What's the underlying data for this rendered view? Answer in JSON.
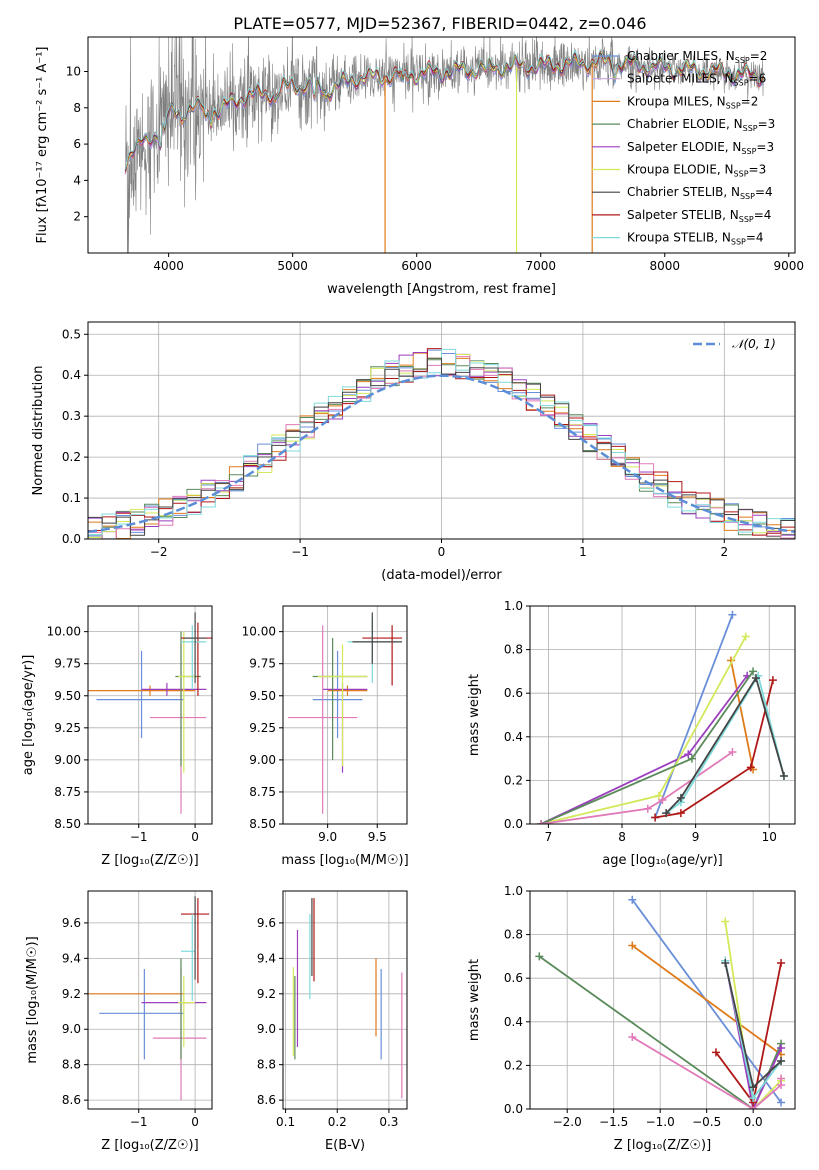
{
  "title": "PLATE=0577, MJD=52367, FIBERID=0442, z=0.046",
  "colors": {
    "Chabrier MILES": "#6a8fd8",
    "Salpeter MILES": "#c9a0d8",
    "Kroupa MILES": "#e07b1a",
    "Chabrier ELODIE": "#5a8a5a",
    "Salpeter ELODIE": "#9b3fbf",
    "Kroupa ELODIE": "#d4e85a",
    "Chabrier STELIB": "#444444",
    "Salpeter STELIB": "#b01818",
    "Kroupa STELIB": "#7fdada",
    "pink": "#e07ab8",
    "data": "#808080",
    "normal": "#5b8ed6"
  },
  "chart_data": [
    {
      "type": "line",
      "title": "PLATE=0577, MJD=52367, FIBERID=0442, z=0.046",
      "xlabel": "wavelength [Angstrom, rest frame]",
      "ylabel": "Flux [fλ10⁻¹⁷ erg cm⁻² s⁻¹ A⁻¹]",
      "xlim": [
        3350,
        9050
      ],
      "ylim": [
        0,
        11.9
      ],
      "xticks": [
        "4000",
        "5000",
        "6000",
        "7000",
        "8000",
        "9000"
      ],
      "yticks": [
        "2",
        "4",
        "6",
        "8",
        "10"
      ],
      "legend_position": "right",
      "legend": [
        "Chabrier MILES, N_SSP=2",
        "Salpeter MILES, N_SSP=6",
        "Kroupa MILES, N_SSP=2",
        "Chabrier ELODIE, N_SSP=3",
        "Salpeter ELODIE, N_SSP=3",
        "Kroupa ELODIE, N_SSP=3",
        "Chabrier STELIB, N_SSP=4",
        "Salpeter STELIB, N_SSP=4",
        "Kroupa STELIB, N_SSP=4"
      ],
      "continuum": [
        [
          3650,
          5.0
        ],
        [
          3700,
          5.6
        ],
        [
          3800,
          6.0
        ],
        [
          3900,
          6.6
        ],
        [
          4000,
          7.6
        ],
        [
          4200,
          8.0
        ],
        [
          4400,
          7.8
        ],
        [
          4600,
          8.6
        ],
        [
          4861,
          8.8
        ],
        [
          5000,
          9.3
        ],
        [
          5300,
          9.0
        ],
        [
          5500,
          9.6
        ],
        [
          5900,
          9.8
        ],
        [
          6300,
          10.0
        ],
        [
          6563,
          10.2
        ],
        [
          7000,
          10.3
        ],
        [
          7500,
          10.5
        ],
        [
          8000,
          10.2
        ],
        [
          8500,
          9.9
        ],
        [
          8800,
          9.7
        ]
      ]
    },
    {
      "type": "histogram",
      "xlabel": "(data-model)/error",
      "ylabel": "Normed distribution",
      "xlim": [
        -2.5,
        2.5
      ],
      "ylim": [
        0,
        0.53
      ],
      "xticks": [
        "−2",
        "−1",
        "0",
        "1",
        "2"
      ],
      "yticks": [
        "0.0",
        "0.1",
        "0.2",
        "0.3",
        "0.4",
        "0.5"
      ],
      "grid": true,
      "legend": [
        "𝒩(0, 1)"
      ],
      "legend_position": "top-right",
      "bin_width": 0.1,
      "gaussian": {
        "mean": 0,
        "sigma": 1
      }
    },
    {
      "type": "scatter",
      "xlabel": "Z [log₁₀(Z/Z☉)]",
      "ylabel": "age  [log₁₀(age/yr)]",
      "xlim": [
        -1.9,
        0.3
      ],
      "ylim": [
        8.5,
        10.2
      ],
      "xticks": [
        "−1",
        "0"
      ],
      "yticks": [
        "8.50",
        "8.75",
        "9.00",
        "9.25",
        "9.50",
        "9.75",
        "10.00"
      ],
      "grid": true,
      "errorbars": [
        {
          "model": "Chabrier MILES",
          "x": -0.95,
          "y": 9.47,
          "xlo": -1.75,
          "xhi": -0.2,
          "ylo": 9.17,
          "yhi": 9.85
        },
        {
          "model": "Kroupa MILES",
          "x": -0.8,
          "y": 9.54,
          "xlo": -1.9,
          "xhi": 0.0,
          "ylo": 9.5,
          "yhi": 9.58
        },
        {
          "model": "Salpeter ELODIE",
          "x": -0.5,
          "y": 9.55,
          "xlo": -0.95,
          "xhi": 0.2,
          "ylo": 9.5,
          "yhi": 9.6
        },
        {
          "model": "pink",
          "x": -0.25,
          "y": 9.33,
          "xlo": -0.8,
          "xhi": 0.2,
          "ylo": 8.58,
          "yhi": 9.9
        },
        {
          "model": "Chabrier ELODIE",
          "x": -0.25,
          "y": 9.65,
          "xlo": -0.35,
          "xhi": 0.1,
          "ylo": 8.95,
          "yhi": 10.0
        },
        {
          "model": "Kroupa ELODIE",
          "x": -0.2,
          "y": 9.65,
          "xlo": -0.3,
          "xhi": 0.0,
          "ylo": 8.9,
          "yhi": 10.0
        },
        {
          "model": "Salpeter STELIB",
          "x": 0.05,
          "y": 9.95,
          "xlo": -0.25,
          "xhi": 0.3,
          "ylo": 9.5,
          "yhi": 10.07
        },
        {
          "model": "Kroupa STELIB",
          "x": -0.05,
          "y": 9.92,
          "xlo": -0.25,
          "xhi": 0.2,
          "ylo": 9.55,
          "yhi": 10.05
        },
        {
          "model": "Chabrier STELIB",
          "x": 0.0,
          "y": 9.95,
          "xlo": -0.2,
          "xhi": 0.2,
          "ylo": 9.6,
          "yhi": 10.15
        }
      ]
    },
    {
      "type": "scatter",
      "xlabel": "mass [log₁₀(M/M☉)]",
      "xlim": [
        8.55,
        9.8
      ],
      "ylim": [
        8.5,
        10.2
      ],
      "xticks": [
        "9.0",
        "9.5"
      ],
      "yticks": [
        "8.50",
        "8.75",
        "9.00",
        "9.25",
        "9.50",
        "9.75",
        "10.00"
      ],
      "grid": true,
      "errorbars": [
        {
          "model": "Chabrier MILES",
          "x": 9.1,
          "y": 9.47,
          "xlo": 8.85,
          "xhi": 9.35,
          "ylo": 9.17,
          "yhi": 9.85
        },
        {
          "model": "Kroupa MILES",
          "x": 9.2,
          "y": 9.54,
          "xlo": 9.0,
          "xhi": 9.4,
          "ylo": 9.5,
          "yhi": 9.58
        },
        {
          "model": "Salpeter ELODIE",
          "x": 9.15,
          "y": 9.55,
          "xlo": 8.95,
          "xhi": 9.4,
          "ylo": 8.9,
          "yhi": 9.6
        },
        {
          "model": "pink",
          "x": 8.95,
          "y": 9.33,
          "xlo": 8.6,
          "xhi": 9.3,
          "ylo": 8.58,
          "yhi": 10.05
        },
        {
          "model": "Chabrier ELODIE",
          "x": 9.05,
          "y": 9.65,
          "xlo": 8.85,
          "xhi": 9.4,
          "ylo": 9.0,
          "yhi": 9.95
        },
        {
          "model": "Kroupa ELODIE",
          "x": 9.15,
          "y": 9.65,
          "xlo": 8.9,
          "xhi": 9.4,
          "ylo": 8.95,
          "yhi": 9.9
        },
        {
          "model": "Salpeter STELIB",
          "x": 9.65,
          "y": 9.95,
          "xlo": 9.35,
          "xhi": 9.75,
          "ylo": 9.58,
          "yhi": 10.05
        },
        {
          "model": "Kroupa STELIB",
          "x": 9.45,
          "y": 9.92,
          "xlo": 9.2,
          "xhi": 9.7,
          "ylo": 9.6,
          "yhi": 10.1
        },
        {
          "model": "Chabrier STELIB",
          "x": 9.45,
          "y": 9.92,
          "xlo": 9.25,
          "xhi": 9.75,
          "ylo": 9.75,
          "yhi": 10.15
        }
      ]
    },
    {
      "type": "line",
      "xlabel": "age  [log₁₀(age/yr)]",
      "ylabel": "mass weight",
      "xlim": [
        6.75,
        10.35
      ],
      "ylim": [
        0,
        1.0
      ],
      "xticks": [
        "7",
        "8",
        "9",
        "10"
      ],
      "yticks": [
        "0.0",
        "0.2",
        "0.4",
        "0.6",
        "0.8",
        "1.0"
      ],
      "grid": true,
      "series": [
        {
          "model": "Chabrier MILES",
          "x": [
            8.45,
            9.5
          ],
          "y": [
            0.03,
            0.96
          ]
        },
        {
          "model": "Kroupa MILES",
          "x": [
            9.48,
            9.78
          ],
          "y": [
            0.75,
            0.25
          ]
        },
        {
          "model": "Salpeter ELODIE",
          "x": [
            6.9,
            8.9,
            9.7
          ],
          "y": [
            0.0,
            0.32,
            0.68
          ]
        },
        {
          "model": "Kroupa ELODIE",
          "x": [
            6.9,
            8.5,
            9.68
          ],
          "y": [
            0.0,
            0.13,
            0.86
          ]
        },
        {
          "model": "Chabrier ELODIE",
          "x": [
            6.9,
            8.95,
            9.78
          ],
          "y": [
            0.0,
            0.3,
            0.7
          ]
        },
        {
          "model": "pink",
          "x": [
            6.9,
            8.35,
            8.55,
            9.5
          ],
          "y": [
            0.0,
            0.07,
            0.11,
            0.33
          ]
        },
        {
          "model": "Salpeter STELIB",
          "x": [
            8.45,
            8.8,
            9.75,
            10.05
          ],
          "y": [
            0.03,
            0.05,
            0.26,
            0.66
          ]
        },
        {
          "model": "Kroupa STELIB",
          "x": [
            8.6,
            8.8,
            9.85,
            10.2
          ],
          "y": [
            0.05,
            0.1,
            0.68,
            0.22
          ]
        },
        {
          "model": "Chabrier STELIB",
          "x": [
            8.6,
            8.8,
            9.82,
            10.2
          ],
          "y": [
            0.05,
            0.12,
            0.67,
            0.22
          ]
        }
      ]
    },
    {
      "type": "scatter",
      "xlabel": "Z [log₁₀(Z/Z☉)]",
      "ylabel": "mass [log₁₀(M/M☉)]",
      "xlim": [
        -1.9,
        0.3
      ],
      "ylim": [
        8.55,
        9.78
      ],
      "xticks": [
        "−1",
        "0"
      ],
      "yticks": [
        "8.6",
        "8.8",
        "9.0",
        "9.2",
        "9.4",
        "9.6"
      ],
      "grid": true,
      "errorbars": [
        {
          "model": "Chabrier MILES",
          "x": -0.9,
          "y": 9.09,
          "xlo": -1.7,
          "xhi": -0.2,
          "ylo": 8.83,
          "yhi": 9.34
        },
        {
          "model": "Kroupa MILES",
          "x": -1.0,
          "y": 9.2,
          "xlo": -1.9,
          "xhi": -0.2,
          "ylo": 9.2,
          "yhi": 9.2
        },
        {
          "model": "Salpeter ELODIE",
          "x": -0.5,
          "y": 9.15,
          "xlo": -0.95,
          "xhi": 0.2,
          "ylo": 9.15,
          "yhi": 9.15
        },
        {
          "model": "pink",
          "x": -0.25,
          "y": 8.95,
          "xlo": -0.75,
          "xhi": 0.2,
          "ylo": 8.6,
          "yhi": 9.35
        },
        {
          "model": "Chabrier ELODIE",
          "x": -0.25,
          "y": 9.05,
          "xlo": -0.25,
          "xhi": -0.25,
          "ylo": 8.83,
          "yhi": 9.4
        },
        {
          "model": "Kroupa ELODIE",
          "x": -0.2,
          "y": 9.15,
          "xlo": -0.3,
          "xhi": 0.0,
          "ylo": 8.9,
          "yhi": 9.3
        },
        {
          "model": "Salpeter STELIB",
          "x": 0.05,
          "y": 9.65,
          "xlo": -0.25,
          "xhi": 0.25,
          "ylo": 9.26,
          "yhi": 9.74
        },
        {
          "model": "Kroupa STELIB",
          "x": -0.05,
          "y": 9.44,
          "xlo": -0.25,
          "xhi": 0.0,
          "ylo": 9.16,
          "yhi": 9.65
        },
        {
          "model": "Chabrier STELIB",
          "x": 0.0,
          "y": 9.5,
          "xlo": 0.0,
          "xhi": 0.0,
          "ylo": 9.28,
          "yhi": 9.75
        }
      ]
    },
    {
      "type": "scatter",
      "xlabel": "E(B-V)",
      "xlim": [
        0.095,
        0.335
      ],
      "ylim": [
        8.55,
        9.78
      ],
      "xticks": [
        "0.1",
        "0.2",
        "0.3"
      ],
      "yticks": [
        "8.6",
        "8.8",
        "9.0",
        "9.2",
        "9.4",
        "9.6"
      ],
      "grid": true,
      "errorbars": [
        {
          "model": "Kroupa ELODIE",
          "x": 0.115,
          "y": 9.1,
          "ylo": 8.85,
          "yhi": 9.35
        },
        {
          "model": "Chabrier ELODIE",
          "x": 0.118,
          "y": 9.05,
          "ylo": 8.83,
          "yhi": 9.3
        },
        {
          "model": "Salpeter ELODIE",
          "x": 0.123,
          "y": 9.15,
          "ylo": 8.9,
          "yhi": 9.56
        },
        {
          "model": "Kroupa STELIB",
          "x": 0.147,
          "y": 9.45,
          "ylo": 9.17,
          "yhi": 9.65
        },
        {
          "model": "Chabrier STELIB",
          "x": 0.151,
          "y": 9.5,
          "ylo": 9.3,
          "yhi": 9.74
        },
        {
          "model": "Salpeter STELIB",
          "x": 0.155,
          "y": 9.5,
          "ylo": 9.27,
          "yhi": 9.74
        },
        {
          "model": "Kroupa MILES",
          "x": 0.275,
          "y": 9.18,
          "ylo": 8.96,
          "yhi": 9.4
        },
        {
          "model": "Chabrier MILES",
          "x": 0.285,
          "y": 9.1,
          "ylo": 8.83,
          "yhi": 9.34
        },
        {
          "model": "pink",
          "x": 0.325,
          "y": 8.95,
          "ylo": 8.61,
          "yhi": 9.32
        }
      ]
    },
    {
      "type": "line",
      "xlabel": "Z [log₁₀(Z/Z☉)]",
      "ylabel": "mass weight",
      "xlim": [
        -2.4,
        0.45
      ],
      "ylim": [
        0,
        1.0
      ],
      "xticks": [
        "−2.0",
        "−1.5",
        "−1.0",
        "−0.5",
        "0.0"
      ],
      "yticks": [
        "0.0",
        "0.2",
        "0.4",
        "0.6",
        "0.8",
        "1.0"
      ],
      "grid": true,
      "series": [
        {
          "model": "Chabrier MILES",
          "x": [
            -1.3,
            0.3
          ],
          "y": [
            0.96,
            0.03
          ]
        },
        {
          "model": "Kroupa MILES",
          "x": [
            -1.3,
            0.3
          ],
          "y": [
            0.75,
            0.25
          ]
        },
        {
          "model": "Chabrier ELODIE",
          "x": [
            -2.3,
            0.0,
            0.3
          ],
          "y": [
            0.7,
            0.0,
            0.3
          ]
        },
        {
          "model": "Kroupa ELODIE",
          "x": [
            -0.3,
            0.0,
            0.3
          ],
          "y": [
            0.86,
            0.0,
            0.13
          ]
        },
        {
          "model": "Salpeter ELODIE",
          "x": [
            -0.3,
            0.0,
            0.3
          ],
          "y": [
            0.68,
            0.0,
            0.28
          ]
        },
        {
          "model": "pink",
          "x": [
            -1.3,
            0.0,
            0.3,
            0.3
          ],
          "y": [
            0.33,
            0.0,
            0.11,
            0.14
          ]
        },
        {
          "model": "Salpeter STELIB",
          "x": [
            -0.4,
            0.0,
            0.3
          ],
          "y": [
            0.26,
            0.03,
            0.67
          ]
        },
        {
          "model": "Kroupa STELIB",
          "x": [
            -0.3,
            0.0,
            0.3
          ],
          "y": [
            0.68,
            0.05,
            0.22
          ]
        },
        {
          "model": "Chabrier STELIB",
          "x": [
            -0.3,
            0.0,
            0.3
          ],
          "y": [
            0.67,
            0.1,
            0.22
          ]
        }
      ]
    }
  ]
}
